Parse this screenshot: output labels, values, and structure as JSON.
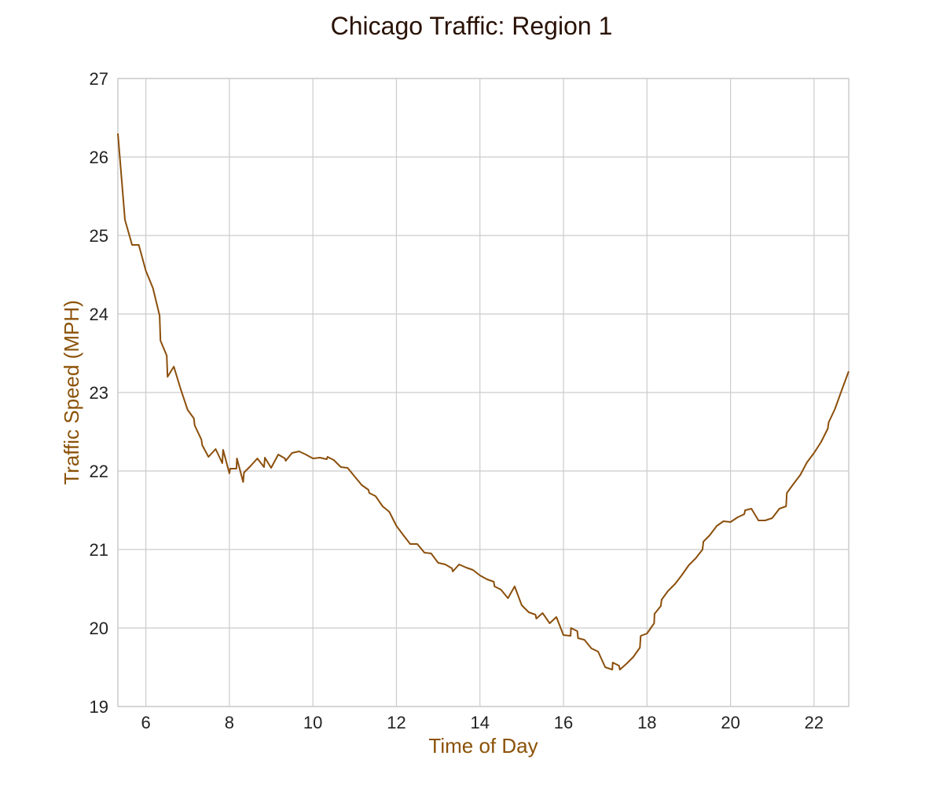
{
  "chart_data": {
    "type": "line",
    "title": "Chicago Traffic: Region 1",
    "xlabel": "Time of Day",
    "ylabel": "Traffic Speed (MPH)",
    "xlim": [
      5.33,
      22.83
    ],
    "ylim": [
      19,
      27
    ],
    "xticks": [
      6,
      8,
      10,
      12,
      14,
      16,
      18,
      20,
      22
    ],
    "yticks": [
      19,
      20,
      21,
      22,
      23,
      24,
      25,
      26,
      27
    ],
    "grid": true,
    "colors": {
      "line": "#8b4f0c",
      "title": "#2a1206",
      "axis_label": "#8b5208",
      "grid": "#cccccc"
    },
    "series": [
      {
        "x": [
          5.33,
          5.5,
          5.67,
          5.83,
          6.0,
          6.17,
          6.33,
          6.35,
          6.5,
          6.52,
          6.67,
          6.83,
          7.0,
          7.15,
          7.17,
          7.33,
          7.35,
          7.5,
          7.67,
          7.83,
          7.85,
          8.0,
          8.02,
          8.17,
          8.18,
          8.33,
          8.35,
          8.5,
          8.67,
          8.83,
          8.85,
          9.0,
          9.17,
          9.33,
          9.35,
          9.5,
          9.67,
          9.83,
          10.0,
          10.17,
          10.33,
          10.35,
          10.5,
          10.67,
          10.83,
          11.0,
          11.17,
          11.33,
          11.35,
          11.5,
          11.67,
          11.83,
          12.0,
          12.17,
          12.33,
          12.35,
          12.5,
          12.67,
          12.83,
          13.0,
          13.17,
          13.33,
          13.35,
          13.5,
          13.67,
          13.83,
          14.0,
          14.17,
          14.33,
          14.35,
          14.5,
          14.67,
          14.83,
          15.0,
          15.17,
          15.33,
          15.35,
          15.5,
          15.67,
          15.83,
          16.0,
          16.17,
          16.18,
          16.33,
          16.35,
          16.5,
          16.67,
          16.83,
          17.0,
          17.17,
          17.18,
          17.33,
          17.35,
          17.5,
          17.67,
          17.83,
          17.85,
          18.0,
          18.17,
          18.18,
          18.33,
          18.35,
          18.5,
          18.67,
          18.83,
          19.0,
          19.17,
          19.33,
          19.35,
          19.5,
          19.67,
          19.83,
          20.0,
          20.17,
          20.33,
          20.35,
          20.5,
          20.67,
          20.83,
          21.0,
          21.17,
          21.33,
          21.35,
          21.5,
          21.67,
          21.83,
          22.0,
          22.17,
          22.33,
          22.35,
          22.5,
          22.67,
          22.83
        ],
        "y": [
          26.3,
          25.2,
          24.88,
          24.88,
          24.55,
          24.33,
          23.98,
          23.66,
          23.47,
          23.2,
          23.33,
          23.05,
          22.78,
          22.67,
          22.58,
          22.4,
          22.33,
          22.18,
          22.28,
          22.1,
          22.27,
          21.97,
          22.03,
          22.03,
          22.16,
          21.86,
          21.98,
          22.06,
          22.16,
          22.05,
          22.17,
          22.04,
          22.21,
          22.16,
          22.13,
          22.23,
          22.25,
          22.21,
          22.16,
          22.17,
          22.15,
          22.18,
          22.14,
          22.05,
          22.04,
          21.93,
          21.82,
          21.76,
          21.72,
          21.68,
          21.55,
          21.48,
          21.3,
          21.18,
          21.07,
          21.07,
          21.07,
          20.96,
          20.95,
          20.83,
          20.81,
          20.76,
          20.72,
          20.81,
          20.77,
          20.74,
          20.67,
          20.62,
          20.59,
          20.53,
          20.49,
          20.38,
          20.53,
          20.29,
          20.2,
          20.17,
          20.12,
          20.19,
          20.06,
          20.14,
          19.91,
          19.9,
          20.0,
          19.96,
          19.87,
          19.85,
          19.74,
          19.7,
          19.5,
          19.47,
          19.56,
          19.52,
          19.47,
          19.54,
          19.63,
          19.75,
          19.9,
          19.93,
          20.06,
          20.18,
          20.28,
          20.36,
          20.47,
          20.56,
          20.67,
          20.8,
          20.89,
          21.0,
          21.1,
          21.18,
          21.3,
          21.36,
          21.35,
          21.41,
          21.45,
          21.5,
          21.52,
          21.37,
          21.37,
          21.4,
          21.52,
          21.55,
          21.72,
          21.83,
          21.95,
          22.11,
          22.23,
          22.37,
          22.54,
          22.62,
          22.79,
          23.04,
          23.27
        ]
      }
    ]
  }
}
